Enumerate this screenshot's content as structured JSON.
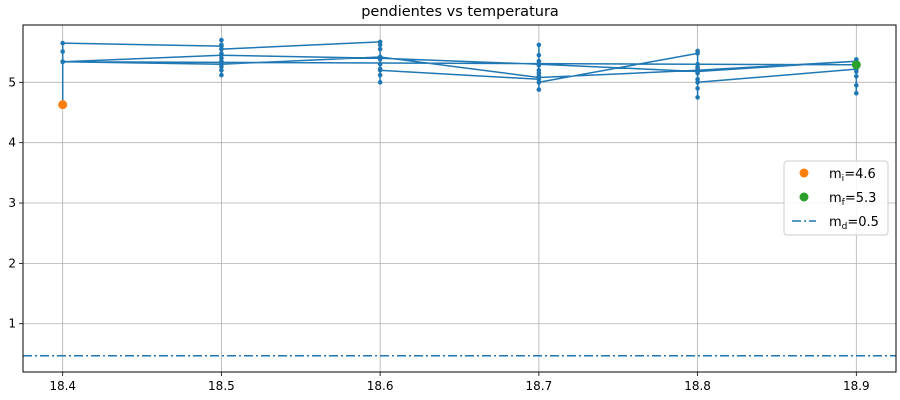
{
  "chart_data": {
    "type": "line",
    "title": "pendientes vs temperatura",
    "xlabel": "",
    "ylabel": "",
    "xlim": [
      18.375,
      18.925
    ],
    "ylim": [
      0.2,
      5.95
    ],
    "x_ticks": [
      18.4,
      18.5,
      18.6,
      18.7,
      18.8,
      18.9
    ],
    "x_tick_labels": [
      "18.4",
      "18.5",
      "18.6",
      "18.7",
      "18.8",
      "18.9"
    ],
    "y_ticks": [
      1,
      2,
      3,
      4,
      5
    ],
    "y_tick_labels": [
      "1",
      "2",
      "3",
      "4",
      "5"
    ],
    "grid": true,
    "legend_position": "center-right",
    "colors": {
      "series": "#1f77b4",
      "initial": "#ff7f0e",
      "final": "#2ca02c",
      "grid": "#b0b0b0"
    },
    "series": [
      {
        "name": "",
        "color": "#1f77b4",
        "style": "line-with-dots",
        "x": [
          18.4,
          18.4,
          18.4,
          18.4,
          18.5,
          18.5,
          18.5,
          18.5,
          18.5,
          18.5,
          18.5,
          18.5,
          18.5,
          18.5,
          18.6,
          18.6,
          18.6,
          18.6,
          18.6,
          18.6,
          18.6,
          18.6,
          18.6,
          18.6,
          18.7,
          18.7,
          18.7,
          18.7,
          18.7,
          18.7,
          18.7,
          18.7,
          18.7,
          18.7,
          18.8,
          18.8,
          18.8,
          18.8,
          18.8,
          18.8,
          18.8,
          18.8,
          18.8,
          18.8,
          18.9,
          18.9,
          18.9,
          18.9,
          18.9,
          18.9,
          18.9,
          18.9,
          18.4,
          18.5,
          18.6,
          18.7,
          18.8,
          18.9,
          18.8,
          18.7,
          18.6,
          18.5,
          18.4
        ],
        "y": [
          4.63,
          5.34,
          5.51,
          5.65,
          5.6,
          5.48,
          5.26,
          5.4,
          5.7,
          5.62,
          5.2,
          5.12,
          5.35,
          5.55,
          5.67,
          5.62,
          5.38,
          5.22,
          5.0,
          5.12,
          5.55,
          5.42,
          5.3,
          5.2,
          5.05,
          5.35,
          5.62,
          5.45,
          5.1,
          4.88,
          5.2,
          5.28,
          5.15,
          5.0,
          5.48,
          5.25,
          5.05,
          4.9,
          4.75,
          5.3,
          5.52,
          5.15,
          5.22,
          5.0,
          5.22,
          5.32,
          5.1,
          4.95,
          4.82,
          5.18,
          5.38,
          5.29,
          5.34,
          5.45,
          5.4,
          5.3,
          5.18,
          5.35,
          5.2,
          5.08,
          5.42,
          5.3,
          5.34
        ]
      }
    ],
    "points": [
      {
        "name": "initial",
        "x": 18.4,
        "y": 4.63,
        "color": "#ff7f0e"
      },
      {
        "name": "final",
        "x": 18.9,
        "y": 5.29,
        "color": "#2ca02c"
      }
    ],
    "hline": {
      "y": 0.47,
      "color": "#1f77b4",
      "style": "dashdot"
    },
    "legend": [
      {
        "kind": "marker",
        "color": "#ff7f0e",
        "prefix": "m",
        "sub": "i",
        "suffix": "=4.6"
      },
      {
        "kind": "marker",
        "color": "#2ca02c",
        "prefix": "m",
        "sub": "f",
        "suffix": "=5.3"
      },
      {
        "kind": "dashdot",
        "color": "#1f77b4",
        "prefix": "m",
        "sub": "d",
        "suffix": "=0.5"
      }
    ]
  }
}
